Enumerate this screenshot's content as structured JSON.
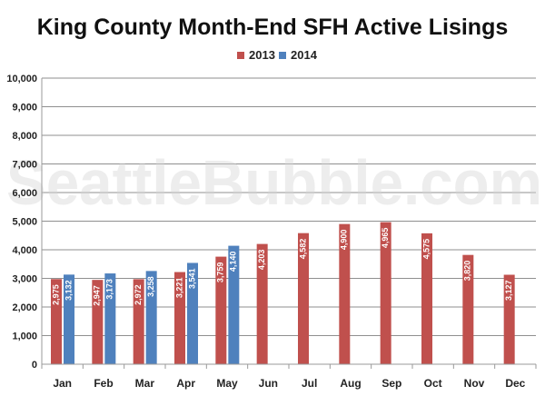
{
  "chart_data": {
    "type": "bar",
    "title": "King County Month-End SFH Active Lisings",
    "watermark": "SeattleBubble.com",
    "categories": [
      "Jan",
      "Feb",
      "Mar",
      "Apr",
      "May",
      "Jun",
      "Jul",
      "Aug",
      "Sep",
      "Oct",
      "Nov",
      "Dec"
    ],
    "series": [
      {
        "name": "2013",
        "color": "#c0504d",
        "values": [
          2975,
          2947,
          2972,
          3221,
          3759,
          4203,
          4582,
          4900,
          4965,
          4575,
          3820,
          3127
        ]
      },
      {
        "name": "2014",
        "color": "#4f81bd",
        "values": [
          3132,
          3173,
          3258,
          3541,
          4140,
          null,
          null,
          null,
          null,
          null,
          null,
          null
        ]
      }
    ],
    "ylim": [
      0,
      10000
    ],
    "yticks": [
      0,
      1000,
      2000,
      3000,
      4000,
      5000,
      6000,
      7000,
      8000,
      9000,
      10000
    ],
    "ytick_labels": [
      "0",
      "1,000",
      "2,000",
      "3,000",
      "4,000",
      "5,000",
      "6,000",
      "7,000",
      "8,000",
      "9,000",
      "10,000"
    ],
    "grid": true,
    "legend_position": "top-center",
    "xlabel": "",
    "ylabel": ""
  }
}
